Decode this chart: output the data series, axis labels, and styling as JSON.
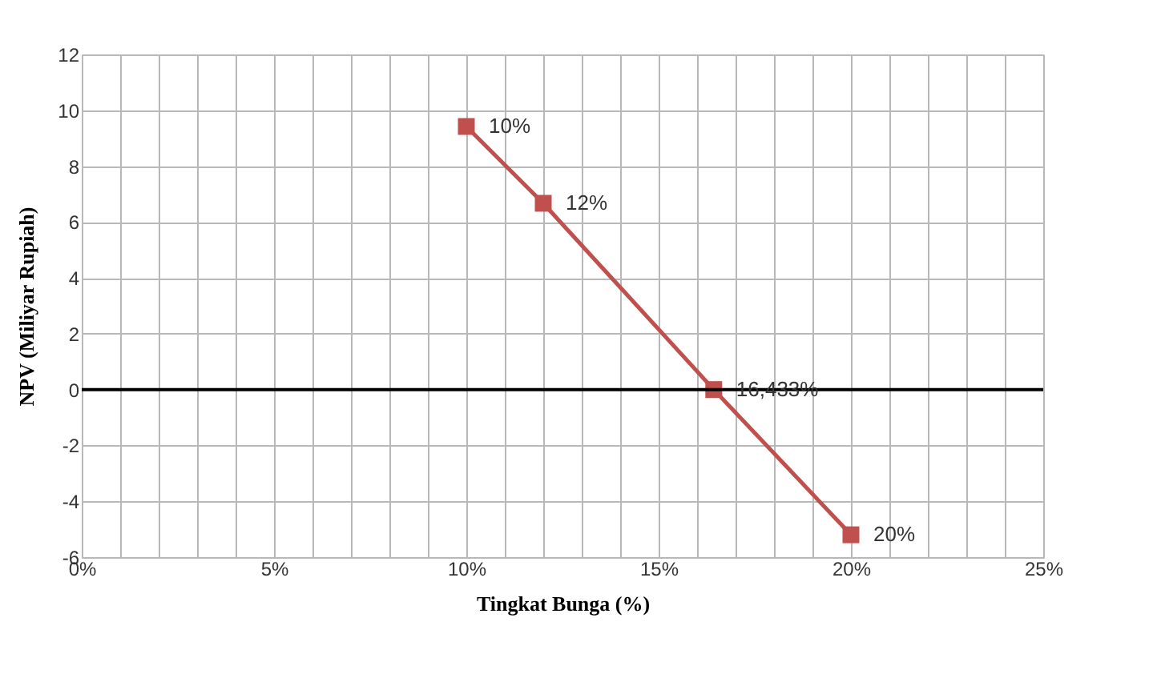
{
  "chart_data": {
    "type": "line",
    "xlabel": "Tingkat Bunga (%)",
    "ylabel": "NPV (Miliyar Rupiah)",
    "x": [
      10,
      12,
      16.433,
      20
    ],
    "series": [
      {
        "color": "#c0504d",
        "values": [
          9.42,
          6.67,
          0,
          -5.2
        ]
      }
    ],
    "marker": "square",
    "line_style": "solid",
    "grid": true,
    "xlim": [
      0,
      25
    ],
    "xticks": [
      {
        "value": 0,
        "label": "0%"
      },
      {
        "value": 1,
        "label": null
      },
      {
        "value": 2,
        "label": null
      },
      {
        "value": 3,
        "label": null
      },
      {
        "value": 4,
        "label": null
      },
      {
        "value": 5,
        "label": "5%"
      },
      {
        "value": 6,
        "label": null
      },
      {
        "value": 7,
        "label": null
      },
      {
        "value": 8,
        "label": null
      },
      {
        "value": 9,
        "label": null
      },
      {
        "value": 10,
        "label": "10%"
      },
      {
        "value": 11,
        "label": null
      },
      {
        "value": 12,
        "label": null
      },
      {
        "value": 13,
        "label": null
      },
      {
        "value": 14,
        "label": null
      },
      {
        "value": 15,
        "label": "15%"
      },
      {
        "value": 16,
        "label": null
      },
      {
        "value": 17,
        "label": null
      },
      {
        "value": 18,
        "label": null
      },
      {
        "value": 19,
        "label": null
      },
      {
        "value": 20,
        "label": "20%"
      },
      {
        "value": 21,
        "label": null
      },
      {
        "value": 22,
        "label": null
      },
      {
        "value": 23,
        "label": null
      },
      {
        "value": 24,
        "label": null
      },
      {
        "value": 25,
        "label": "25%"
      }
    ],
    "ylim": [
      -6,
      12
    ],
    "yticks": [
      -6,
      -4,
      -2,
      0,
      2,
      4,
      6,
      8,
      10,
      12
    ],
    "ref_lines": [
      {
        "axis": "y",
        "value": 0,
        "color": "#000000"
      }
    ],
    "annotations": [
      {
        "text": "10%",
        "x": 10,
        "y": 9.42
      },
      {
        "text": "12%",
        "x": 12,
        "y": 6.67
      },
      {
        "text": "16,433%",
        "x": 16.433,
        "y": 0
      },
      {
        "text": "20%",
        "x": 20,
        "y": -5.2
      }
    ]
  }
}
